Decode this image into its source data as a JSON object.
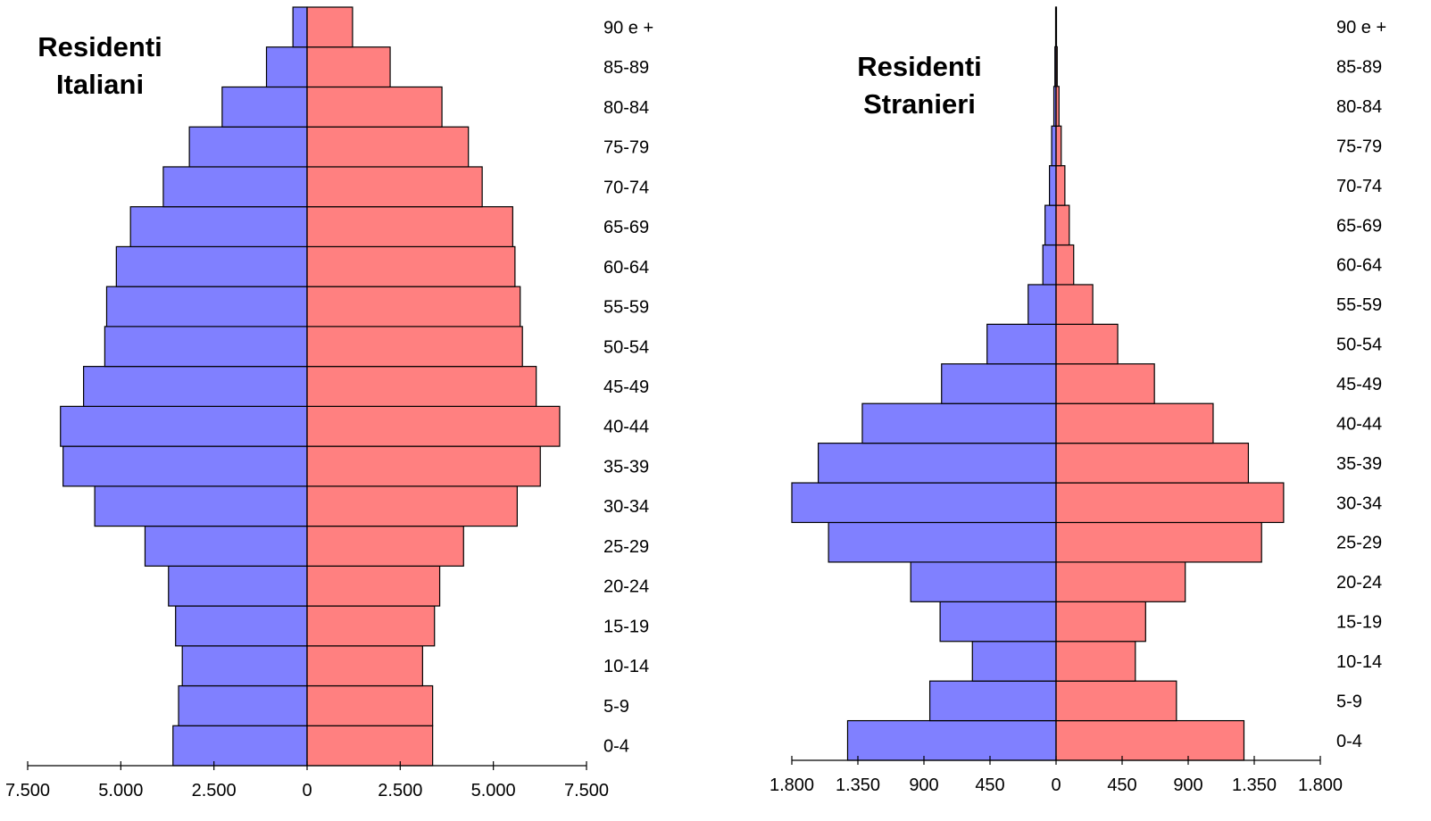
{
  "chart_data": [
    {
      "type": "bar",
      "orientation": "horizontal",
      "layout": "population-pyramid",
      "title": "Residenti\nItaliani",
      "categories": [
        "0-4",
        "5-9",
        "10-14",
        "15-19",
        "20-24",
        "25-29",
        "30-34",
        "35-39",
        "40-44",
        "45-49",
        "50-54",
        "55-59",
        "60-64",
        "65-69",
        "70-74",
        "75-79",
        "80-84",
        "85-89",
        "90 e +"
      ],
      "series": [
        {
          "color": "#8080ff",
          "side": "left",
          "values": [
            3600,
            3450,
            3350,
            3530,
            3720,
            4350,
            5700,
            6550,
            6620,
            6000,
            5430,
            5380,
            5120,
            4740,
            3860,
            3160,
            2280,
            1090,
            380
          ]
        },
        {
          "color": "#ff8080",
          "side": "right",
          "values": [
            3370,
            3370,
            3100,
            3420,
            3560,
            4200,
            5640,
            6260,
            6780,
            6150,
            5780,
            5720,
            5580,
            5520,
            4700,
            4330,
            3620,
            2230,
            1220
          ]
        }
      ],
      "xlim": [
        -7500,
        7500
      ],
      "ticks": [
        -7500,
        -5000,
        -2500,
        0,
        2500,
        5000,
        7500
      ],
      "tick_labels": [
        "7.500",
        "5.000",
        "2.500",
        "0",
        "2.500",
        "5.000",
        "7.500"
      ],
      "grid": false,
      "legend": "none"
    },
    {
      "type": "bar",
      "orientation": "horizontal",
      "layout": "population-pyramid",
      "title": "Residenti\nStranieri",
      "categories": [
        "0-4",
        "5-9",
        "10-14",
        "15-19",
        "20-24",
        "25-29",
        "30-34",
        "35-39",
        "40-44",
        "45-49",
        "50-54",
        "55-59",
        "60-64",
        "65-69",
        "70-74",
        "75-79",
        "80-84",
        "85-89",
        "90 e +"
      ],
      "series": [
        {
          "color": "#8080ff",
          "side": "left",
          "values": [
            1420,
            860,
            570,
            790,
            990,
            1550,
            1800,
            1620,
            1320,
            780,
            470,
            190,
            90,
            75,
            45,
            30,
            15,
            8,
            3
          ]
        },
        {
          "color": "#ff8080",
          "side": "right",
          "values": [
            1280,
            820,
            540,
            610,
            880,
            1400,
            1550,
            1310,
            1070,
            670,
            420,
            250,
            120,
            90,
            60,
            35,
            20,
            8,
            3
          ]
        }
      ],
      "xlim": [
        -1800,
        1800
      ],
      "ticks": [
        -1800,
        -1350,
        -900,
        -450,
        0,
        450,
        900,
        1350,
        1800
      ],
      "tick_labels": [
        "1.800",
        "1.350",
        "900",
        "450",
        "0",
        "450",
        "900",
        "1.350",
        "1.800"
      ],
      "grid": false,
      "legend": "none"
    }
  ]
}
